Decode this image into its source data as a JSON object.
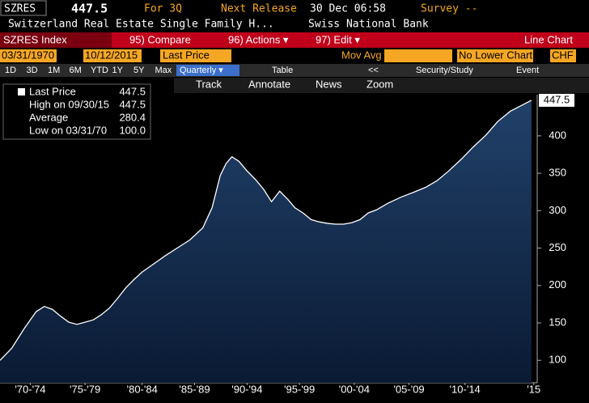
{
  "header": {
    "ticker": "SZRES",
    "price": "447.5",
    "period": "For 3Q",
    "release_label": "Next Release",
    "release_time": "30 Dec 06:58",
    "survey": "Survey --"
  },
  "subheader": {
    "name": "Switzerland Real Estate Single Family H...",
    "source": "Swiss National Bank"
  },
  "menu": {
    "security": "SZRES Index",
    "items": [
      "95) Compare",
      "96) Actions ▾",
      "97) Edit ▾"
    ],
    "chart_type": "Line Chart"
  },
  "fields": {
    "start": "03/31/1970",
    "end": "10/12/2015",
    "field": "Last Price",
    "overlay": "Mov Avg",
    "lower": "No Lower Chart",
    "currency": "CHF"
  },
  "toolbar": {
    "periods": [
      "1D",
      "3D",
      "1M",
      "6M",
      "YTD",
      "1Y",
      "5Y",
      "Max"
    ],
    "frequency": "Quarterly ▾",
    "table": "Table",
    "back": "<<",
    "study": "Security/Study",
    "event": "Event"
  },
  "tools": [
    "Track",
    "Annotate",
    "News",
    "Zoom"
  ],
  "legend": {
    "last_value": "447.5",
    "rows": [
      {
        "label": "High on 09/30/15",
        "value": "447.5"
      },
      {
        "label": "Average",
        "value": "280.4"
      },
      {
        "label": "Low on 03/31/70",
        "value": "100.0"
      }
    ]
  },
  "chart_data": {
    "type": "area",
    "x": [
      1970.0,
      1971.0,
      1972.1,
      1973.1,
      1973.8,
      1974.5,
      1975.2,
      1975.9,
      1976.6,
      1977.3,
      1978.0,
      1978.7,
      1979.4,
      1980.1,
      1980.8,
      1981.5,
      1982.2,
      1983.2,
      1984.2,
      1985.3,
      1986.3,
      1987.4,
      1988.2,
      1988.9,
      1989.4,
      1989.9,
      1990.5,
      1991.2,
      1991.9,
      1992.6,
      1993.3,
      1994.0,
      1994.7,
      1995.3,
      1996.0,
      1996.7,
      1997.4,
      1998.1,
      1998.8,
      1999.5,
      2000.2,
      2000.9,
      2001.6,
      2002.3,
      2003.3,
      2004.4,
      2005.4,
      2006.5,
      2007.5,
      2008.5,
      2009.6,
      2010.6,
      2011.7,
      2012.7,
      2013.8,
      2014.8,
      2015.6
    ],
    "series": [
      {
        "name": "Last Price",
        "color": "#ffffff",
        "values": [
          100,
          116,
          143,
          165,
          172,
          168,
          159,
          151,
          148,
          151,
          154,
          161,
          170,
          183,
          197,
          208,
          218,
          229,
          240,
          251,
          261,
          277,
          304,
          347,
          363,
          372,
          366,
          353,
          342,
          329,
          312,
          326,
          315,
          304,
          297,
          288,
          285,
          283,
          282,
          282,
          284,
          288,
          297,
          301,
          310,
          318,
          324,
          331,
          340,
          353,
          369,
          385,
          401,
          419,
          433,
          441,
          447.5
        ]
      }
    ],
    "xlim": [
      1970,
      2016.1
    ],
    "ylim": [
      70,
      455
    ],
    "xticks": [
      {
        "value": 1972.6,
        "label": "'70-'74"
      },
      {
        "value": 1977.3,
        "label": "'75-'79"
      },
      {
        "value": 1982.2,
        "label": "'80-'84"
      },
      {
        "value": 1986.7,
        "label": "'85-'89"
      },
      {
        "value": 1991.2,
        "label": "'90-'94"
      },
      {
        "value": 1995.7,
        "label": "'95-'99"
      },
      {
        "value": 2000.4,
        "label": "'00-'04"
      },
      {
        "value": 2005.1,
        "label": "'05-'09"
      },
      {
        "value": 2009.9,
        "label": "'10-'14"
      },
      {
        "value": 2015.8,
        "label": "'15"
      }
    ],
    "yticks": [
      100,
      150,
      200,
      250,
      300,
      350,
      400
    ]
  }
}
